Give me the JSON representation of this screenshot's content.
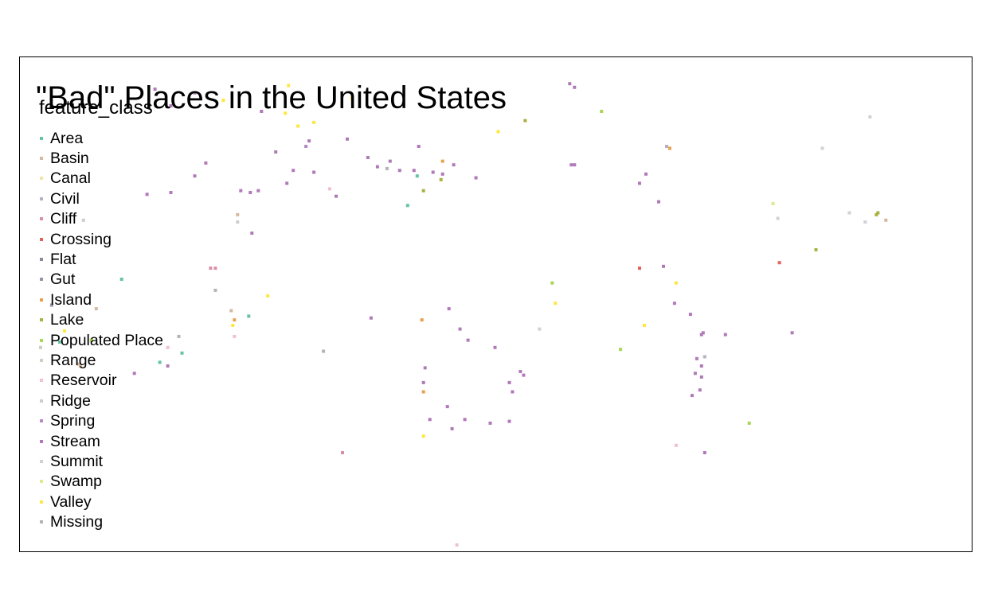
{
  "title": "\"Bad\" Places in the United States",
  "legend": {
    "title": "feature_class",
    "placement": "top-left",
    "items": [
      {
        "label": "Area",
        "color": "#66c2a5"
      },
      {
        "label": "Basin",
        "color": "#d4b9a0"
      },
      {
        "label": "Canal",
        "color": "#f0e4a0"
      },
      {
        "label": "Civil",
        "color": "#b8b0c0"
      },
      {
        "label": "Cliff",
        "color": "#d98fa8"
      },
      {
        "label": "Crossing",
        "color": "#e5605a"
      },
      {
        "label": "Flat",
        "color": "#8a8a9a"
      },
      {
        "label": "Gut",
        "color": "#9a90a8"
      },
      {
        "label": "Island",
        "color": "#e8a04a"
      },
      {
        "label": "Lake",
        "color": "#a8b040"
      },
      {
        "label": "Populated Place",
        "color": "#a6d854"
      },
      {
        "label": "Range",
        "color": "#d0ccc0"
      },
      {
        "label": "Reservoir",
        "color": "#f0c0cc"
      },
      {
        "label": "Ridge",
        "color": "#cccccc"
      },
      {
        "label": "Spring",
        "color": "#b58ac0"
      },
      {
        "label": "Stream",
        "color": "#b07ab8"
      },
      {
        "label": "Summit",
        "color": "#d0d0d8"
      },
      {
        "label": "Swamp",
        "color": "#e0e890"
      },
      {
        "label": "Valley",
        "color": "#ffe640"
      },
      {
        "label": "Missing",
        "color": "#b3b3b3"
      }
    ]
  },
  "map_data": {
    "type": "point_map",
    "region": "United States",
    "lon_range": [
      -125,
      -66
    ],
    "lat_range": [
      24,
      50
    ],
    "points": [
      {
        "lon": -117.0,
        "lat": 48.7,
        "class": "Stream"
      },
      {
        "lon": -116.0,
        "lat": 47.8,
        "class": "Stream"
      },
      {
        "lon": -114.5,
        "lat": 48.5,
        "class": "Stream"
      },
      {
        "lon": -108.6,
        "lat": 48.9,
        "class": "Valley"
      },
      {
        "lon": -112.7,
        "lat": 48.1,
        "class": "Valley"
      },
      {
        "lon": -108.0,
        "lat": 46.7,
        "class": "Valley"
      },
      {
        "lon": -108.8,
        "lat": 47.4,
        "class": "Valley"
      },
      {
        "lon": -107.0,
        "lat": 46.9,
        "class": "Valley"
      },
      {
        "lon": -104.6,
        "lat": 48.2,
        "class": "Valley"
      },
      {
        "lon": -110.3,
        "lat": 47.5,
        "class": "Stream"
      },
      {
        "lon": -107.3,
        "lat": 45.9,
        "class": "Stream"
      },
      {
        "lon": -104.9,
        "lat": 46.0,
        "class": "Stream"
      },
      {
        "lon": -100.4,
        "lat": 45.6,
        "class": "Stream"
      },
      {
        "lon": -103.6,
        "lat": 45.0,
        "class": "Stream"
      },
      {
        "lon": -102.2,
        "lat": 44.8,
        "class": "Stream"
      },
      {
        "lon": -103.0,
        "lat": 44.5,
        "class": "Stream"
      },
      {
        "lon": -108.3,
        "lat": 44.3,
        "class": "Stream"
      },
      {
        "lon": -109.4,
        "lat": 45.3,
        "class": "Stream"
      },
      {
        "lon": -117.5,
        "lat": 43.0,
        "class": "Stream"
      },
      {
        "lon": -116.0,
        "lat": 43.1,
        "class": "Stream"
      },
      {
        "lon": -114.5,
        "lat": 44.0,
        "class": "Stream"
      },
      {
        "lon": -113.8,
        "lat": 44.7,
        "class": "Stream"
      },
      {
        "lon": -108.7,
        "lat": 43.6,
        "class": "Stream"
      },
      {
        "lon": -107.0,
        "lat": 44.2,
        "class": "Stream"
      },
      {
        "lon": -107.5,
        "lat": 45.6,
        "class": "Spring"
      },
      {
        "lon": -101.6,
        "lat": 44.3,
        "class": "Stream"
      },
      {
        "lon": -100.7,
        "lat": 44.3,
        "class": "Stream"
      },
      {
        "lon": -99.5,
        "lat": 44.2,
        "class": "Stream"
      },
      {
        "lon": -98.9,
        "lat": 44.1,
        "class": "Stream"
      },
      {
        "lon": -98.2,
        "lat": 44.6,
        "class": "Stream"
      },
      {
        "lon": -96.8,
        "lat": 43.9,
        "class": "Stream"
      },
      {
        "lon": -100.5,
        "lat": 44.0,
        "class": "Area"
      },
      {
        "lon": -100.1,
        "lat": 43.2,
        "class": "Lake"
      },
      {
        "lon": -99.0,
        "lat": 43.8,
        "class": "Lake"
      },
      {
        "lon": -98.9,
        "lat": 44.8,
        "class": "Island"
      },
      {
        "lon": -106.0,
        "lat": 43.3,
        "class": "Reservoir"
      },
      {
        "lon": -101.1,
        "lat": 42.4,
        "class": "Area"
      },
      {
        "lon": -102.4,
        "lat": 44.4,
        "class": "Missing"
      },
      {
        "lon": -105.6,
        "lat": 42.9,
        "class": "Stream"
      },
      {
        "lon": -111.0,
        "lat": 43.1,
        "class": "Stream"
      },
      {
        "lon": -111.6,
        "lat": 43.2,
        "class": "Stream"
      },
      {
        "lon": -110.5,
        "lat": 43.2,
        "class": "Stream"
      },
      {
        "lon": -110.9,
        "lat": 40.9,
        "class": "Stream"
      },
      {
        "lon": -111.8,
        "lat": 41.9,
        "class": "Basin"
      },
      {
        "lon": -111.8,
        "lat": 41.5,
        "class": "Ridge"
      },
      {
        "lon": -113.5,
        "lat": 39.0,
        "class": "Cliff"
      },
      {
        "lon": -113.2,
        "lat": 39.0,
        "class": "Cliff"
      },
      {
        "lon": -121.5,
        "lat": 41.6,
        "class": "Ridge"
      },
      {
        "lon": -123.5,
        "lat": 37.0,
        "class": "Gut"
      },
      {
        "lon": -120.7,
        "lat": 36.8,
        "class": "Basin"
      },
      {
        "lon": -119.1,
        "lat": 38.4,
        "class": "Area"
      },
      {
        "lon": -124.2,
        "lat": 34.7,
        "class": "Range"
      },
      {
        "lon": -122.7,
        "lat": 35.6,
        "class": "Valley"
      },
      {
        "lon": -121.8,
        "lat": 33.8,
        "class": "Basin"
      },
      {
        "lon": -121.7,
        "lat": 33.7,
        "class": "Basin"
      },
      {
        "lon": -121.0,
        "lat": 35.1,
        "class": "Populated Place"
      },
      {
        "lon": -123.0,
        "lat": 35.0,
        "class": "Area"
      },
      {
        "lon": -118.3,
        "lat": 33.3,
        "class": "Stream"
      },
      {
        "lon": -116.7,
        "lat": 33.9,
        "class": "Area"
      },
      {
        "lon": -116.2,
        "lat": 33.7,
        "class": "Stream"
      },
      {
        "lon": -115.5,
        "lat": 35.3,
        "class": "Missing"
      },
      {
        "lon": -116.2,
        "lat": 34.7,
        "class": "Reservoir"
      },
      {
        "lon": -115.3,
        "lat": 34.4,
        "class": "Area"
      },
      {
        "lon": -113.2,
        "lat": 37.8,
        "class": "Missing"
      },
      {
        "lon": -112.1,
        "lat": 35.9,
        "class": "Valley"
      },
      {
        "lon": -112.0,
        "lat": 35.3,
        "class": "Reservoir"
      },
      {
        "lon": -112.0,
        "lat": 36.2,
        "class": "Island"
      },
      {
        "lon": -111.1,
        "lat": 36.4,
        "class": "Area"
      },
      {
        "lon": -112.2,
        "lat": 36.7,
        "class": "Basin"
      },
      {
        "lon": -109.9,
        "lat": 37.5,
        "class": "Valley"
      },
      {
        "lon": -106.4,
        "lat": 34.5,
        "class": "Missing"
      },
      {
        "lon": -105.2,
        "lat": 29.0,
        "class": "Cliff"
      },
      {
        "lon": -103.4,
        "lat": 36.3,
        "class": "Stream"
      },
      {
        "lon": -100.2,
        "lat": 36.2,
        "class": "Island"
      },
      {
        "lon": -100.0,
        "lat": 33.6,
        "class": "Stream"
      },
      {
        "lon": -100.1,
        "lat": 32.8,
        "class": "Stream"
      },
      {
        "lon": -100.1,
        "lat": 32.3,
        "class": "Island"
      },
      {
        "lon": -99.7,
        "lat": 30.8,
        "class": "Stream"
      },
      {
        "lon": -98.6,
        "lat": 31.5,
        "class": "Stream"
      },
      {
        "lon": -98.3,
        "lat": 30.3,
        "class": "Stream"
      },
      {
        "lon": -100.1,
        "lat": 29.9,
        "class": "Valley"
      },
      {
        "lon": -98.5,
        "lat": 36.8,
        "class": "Stream"
      },
      {
        "lon": -97.8,
        "lat": 35.7,
        "class": "Stream"
      },
      {
        "lon": -97.3,
        "lat": 35.1,
        "class": "Stream"
      },
      {
        "lon": -95.6,
        "lat": 34.7,
        "class": "Stream"
      },
      {
        "lon": -94.7,
        "lat": 32.8,
        "class": "Stream"
      },
      {
        "lon": -93.8,
        "lat": 33.2,
        "class": "Stream"
      },
      {
        "lon": -94.0,
        "lat": 33.4,
        "class": "Stream"
      },
      {
        "lon": -94.5,
        "lat": 32.3,
        "class": "Stream"
      },
      {
        "lon": -94.7,
        "lat": 30.7,
        "class": "Stream"
      },
      {
        "lon": -95.9,
        "lat": 30.6,
        "class": "Stream"
      },
      {
        "lon": -97.5,
        "lat": 30.8,
        "class": "Stream"
      },
      {
        "lon": -91.8,
        "lat": 37.1,
        "class": "Valley"
      },
      {
        "lon": -92.8,
        "lat": 35.7,
        "class": "Summit"
      },
      {
        "lon": -92.0,
        "lat": 38.2,
        "class": "Populated Place"
      },
      {
        "lon": -95.4,
        "lat": 46.4,
        "class": "Valley"
      },
      {
        "lon": -93.7,
        "lat": 47.0,
        "class": "Lake"
      },
      {
        "lon": -90.9,
        "lat": 49.0,
        "class": "Stream"
      },
      {
        "lon": -90.6,
        "lat": 48.8,
        "class": "Stream"
      },
      {
        "lon": -88.9,
        "lat": 47.5,
        "class": "Populated Place"
      },
      {
        "lon": -90.8,
        "lat": 44.6,
        "class": "Stream"
      },
      {
        "lon": -90.6,
        "lat": 44.6,
        "class": "Stream"
      },
      {
        "lon": -86.5,
        "lat": 43.6,
        "class": "Stream"
      },
      {
        "lon": -86.1,
        "lat": 44.1,
        "class": "Stream"
      },
      {
        "lon": -84.8,
        "lat": 45.6,
        "class": "Civil"
      },
      {
        "lon": -84.6,
        "lat": 45.5,
        "class": "Island"
      },
      {
        "lon": -85.3,
        "lat": 42.6,
        "class": "Stream"
      },
      {
        "lon": -85.0,
        "lat": 39.1,
        "class": "Stream"
      },
      {
        "lon": -84.3,
        "lat": 37.1,
        "class": "Stream"
      },
      {
        "lon": -83.3,
        "lat": 36.5,
        "class": "Stream"
      },
      {
        "lon": -82.5,
        "lat": 35.5,
        "class": "Stream"
      },
      {
        "lon": -82.6,
        "lat": 35.4,
        "class": "Stream"
      },
      {
        "lon": -82.9,
        "lat": 34.1,
        "class": "Stream"
      },
      {
        "lon": -83.0,
        "lat": 33.3,
        "class": "Stream"
      },
      {
        "lon": -82.6,
        "lat": 33.1,
        "class": "Stream"
      },
      {
        "lon": -83.2,
        "lat": 32.1,
        "class": "Stream"
      },
      {
        "lon": -82.7,
        "lat": 32.4,
        "class": "Stream"
      },
      {
        "lon": -82.6,
        "lat": 33.7,
        "class": "Stream"
      },
      {
        "lon": -81.1,
        "lat": 35.4,
        "class": "Stream"
      },
      {
        "lon": -82.4,
        "lat": 34.2,
        "class": "Civil"
      },
      {
        "lon": -84.2,
        "lat": 38.2,
        "class": "Valley"
      },
      {
        "lon": -86.5,
        "lat": 39.0,
        "class": "Crossing"
      },
      {
        "lon": -87.7,
        "lat": 34.6,
        "class": "Populated Place"
      },
      {
        "lon": -86.2,
        "lat": 35.9,
        "class": "Valley"
      },
      {
        "lon": -84.2,
        "lat": 29.4,
        "class": "Reservoir"
      },
      {
        "lon": -82.4,
        "lat": 29.0,
        "class": "Stream"
      },
      {
        "lon": -79.6,
        "lat": 30.6,
        "class": "Populated Place"
      },
      {
        "lon": -77.7,
        "lat": 39.3,
        "class": "Crossing"
      },
      {
        "lon": -76.9,
        "lat": 35.5,
        "class": "Stream"
      },
      {
        "lon": -75.4,
        "lat": 40.0,
        "class": "Lake"
      },
      {
        "lon": -78.1,
        "lat": 42.5,
        "class": "Swamp"
      },
      {
        "lon": -77.8,
        "lat": 41.7,
        "class": "Summit"
      },
      {
        "lon": -75.0,
        "lat": 45.5,
        "class": "Summit"
      },
      {
        "lon": -72.0,
        "lat": 47.2,
        "class": "Summit"
      },
      {
        "lon": -73.3,
        "lat": 42.0,
        "class": "Summit"
      },
      {
        "lon": -72.3,
        "lat": 41.5,
        "class": "Summit"
      },
      {
        "lon": -71.6,
        "lat": 41.9,
        "class": "Lake"
      },
      {
        "lon": -71.5,
        "lat": 42.0,
        "class": "Lake"
      },
      {
        "lon": -71.0,
        "lat": 41.6,
        "class": "Basin"
      },
      {
        "lon": -98.0,
        "lat": 24.0,
        "class": "Reservoir"
      }
    ]
  }
}
